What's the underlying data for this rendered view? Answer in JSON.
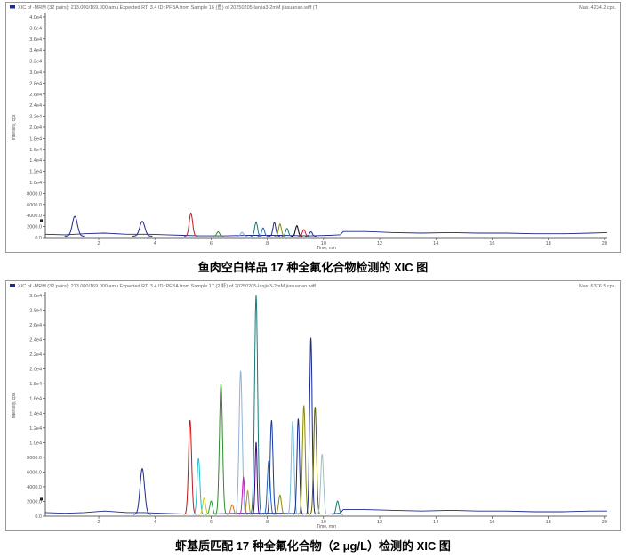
{
  "chart_data": [
    {
      "type": "line",
      "header": "XIC of -MRM (32 pairs): 213.000/169.000 amu Expected RT: 3.4 ID: PFBA from Sample 16 (鱼) of 20250205-lanjia3-2mM jiasuanan.wiff (T",
      "max_label": "Max. 4234.2 cps.",
      "xlabel": "Time, min",
      "ylabel": "Intensity, cps",
      "caption": "鱼肉空白样品 17 种全氟化合物检测的 XIC 图",
      "xlim": [
        0.1,
        20.1
      ],
      "ylim": [
        0,
        40000
      ],
      "x_ticks": [
        2,
        4,
        6,
        8,
        10,
        12,
        14,
        16,
        18,
        20
      ],
      "y_ticks": [
        {
          "v": 0,
          "label": "0.0"
        },
        {
          "v": 2000,
          "label": "2000.0"
        },
        {
          "v": 4000,
          "label": "4000.0"
        },
        {
          "v": 6000,
          "label": "6000.0"
        },
        {
          "v": 8000,
          "label": "8000.0"
        },
        {
          "v": 10000,
          "label": "1.0e4"
        },
        {
          "v": 12000,
          "label": "1.2e4"
        },
        {
          "v": 14000,
          "label": "1.4e4"
        },
        {
          "v": 16000,
          "label": "1.6e4"
        },
        {
          "v": 18000,
          "label": "1.8e4"
        },
        {
          "v": 20000,
          "label": "2.0e4"
        },
        {
          "v": 22000,
          "label": "2.2e4"
        },
        {
          "v": 24000,
          "label": "2.4e4"
        },
        {
          "v": 26000,
          "label": "2.6e4"
        },
        {
          "v": 28000,
          "label": "2.8e4"
        },
        {
          "v": 30000,
          "label": "3.0e4"
        },
        {
          "v": 32000,
          "label": "3.2e4"
        },
        {
          "v": 34000,
          "label": "3.4e4"
        },
        {
          "v": 36000,
          "label": "3.6e4"
        },
        {
          "v": 38000,
          "label": "3.8e4"
        },
        {
          "v": 40000,
          "label": "4.0e4"
        }
      ],
      "baseline": {
        "color": "#1c2a8c",
        "points": [
          [
            0.1,
            600
          ],
          [
            0.8,
            500
          ],
          [
            1.5,
            700
          ],
          [
            2.2,
            800
          ],
          [
            3.0,
            600
          ],
          [
            3.8,
            600
          ],
          [
            4.4,
            500
          ],
          [
            5.0,
            400
          ],
          [
            5.6,
            300
          ],
          [
            6.5,
            300
          ],
          [
            7.3,
            400
          ],
          [
            8.5,
            400
          ],
          [
            9.5,
            300
          ],
          [
            10.2,
            400
          ],
          [
            10.6,
            500
          ],
          [
            10.7,
            1100
          ],
          [
            11.5,
            1100
          ],
          [
            12.5,
            900
          ],
          [
            13.5,
            800
          ],
          [
            14.5,
            900
          ],
          [
            15.5,
            800
          ],
          [
            16.5,
            800
          ],
          [
            17.5,
            700
          ],
          [
            18.5,
            700
          ],
          [
            19.5,
            800
          ],
          [
            20.1,
            900
          ]
        ]
      },
      "peaks": [
        {
          "rt": 1.15,
          "height": 3600,
          "width": 0.09,
          "color": "#1c2a8c"
        },
        {
          "rt": 3.55,
          "height": 2700,
          "width": 0.09,
          "color": "#1c2a8c"
        },
        {
          "rt": 5.28,
          "height": 4200,
          "width": 0.06,
          "color": "#c01818"
        },
        {
          "rt": 6.25,
          "height": 800,
          "width": 0.05,
          "color": "#2e8b2e"
        },
        {
          "rt": 7.1,
          "height": 700,
          "width": 0.05,
          "color": "#7fa7d8"
        },
        {
          "rt": 7.6,
          "height": 2600,
          "width": 0.05,
          "color": "#1a7a7a"
        },
        {
          "rt": 7.85,
          "height": 1500,
          "width": 0.05,
          "color": "#2060c0"
        },
        {
          "rt": 8.25,
          "height": 2500,
          "width": 0.05,
          "color": "#1c2a8c"
        },
        {
          "rt": 8.45,
          "height": 2200,
          "width": 0.05,
          "color": "#8a8a00"
        },
        {
          "rt": 8.7,
          "height": 1400,
          "width": 0.05,
          "color": "#1a7a7a"
        },
        {
          "rt": 9.05,
          "height": 1900,
          "width": 0.05,
          "color": "#000000"
        },
        {
          "rt": 9.3,
          "height": 1200,
          "width": 0.05,
          "color": "#cc2020"
        },
        {
          "rt": 9.55,
          "height": 800,
          "width": 0.05,
          "color": "#1c2a8c"
        }
      ]
    },
    {
      "type": "line",
      "header": "XIC of -MRM (32 pairs): 213.000/169.000 amu Expected RT: 3.4 ID: PFBA from Sample 17 (2 虾) of 20250205-lanjia3-2mM jiasuanan.wiff",
      "max_label": "Max. 6376.5 cps.",
      "xlabel": "Time, min",
      "ylabel": "Intensity, cps",
      "caption": "虾基质匹配 17 种全氟化合物（2 μg/L）检测的 XIC 图",
      "xlim": [
        0.1,
        20.1
      ],
      "ylim": [
        0,
        30000
      ],
      "x_ticks": [
        2,
        4,
        6,
        8,
        10,
        12,
        14,
        16,
        18,
        20
      ],
      "y_ticks": [
        {
          "v": 0,
          "label": "0.0"
        },
        {
          "v": 2000,
          "label": "2000.0"
        },
        {
          "v": 4000,
          "label": "4000.0"
        },
        {
          "v": 6000,
          "label": "6000.0"
        },
        {
          "v": 8000,
          "label": "8000.0"
        },
        {
          "v": 10000,
          "label": "1.0e4"
        },
        {
          "v": 12000,
          "label": "1.2e4"
        },
        {
          "v": 14000,
          "label": "1.4e4"
        },
        {
          "v": 16000,
          "label": "1.6e4"
        },
        {
          "v": 18000,
          "label": "1.8e4"
        },
        {
          "v": 20000,
          "label": "2.0e4"
        },
        {
          "v": 22000,
          "label": "2.2e4"
        },
        {
          "v": 24000,
          "label": "2.4e4"
        },
        {
          "v": 26000,
          "label": "2.6e4"
        },
        {
          "v": 28000,
          "label": "2.8e4"
        },
        {
          "v": 30000,
          "label": "3.0e4"
        }
      ],
      "baseline": {
        "color": "#1c2a8c",
        "points": [
          [
            0.1,
            500
          ],
          [
            0.8,
            400
          ],
          [
            1.5,
            500
          ],
          [
            2.2,
            700
          ],
          [
            3.0,
            500
          ],
          [
            3.6,
            500
          ],
          [
            4.2,
            400
          ],
          [
            5.0,
            300
          ],
          [
            6.0,
            300
          ],
          [
            7.0,
            400
          ],
          [
            8.5,
            400
          ],
          [
            9.5,
            300
          ],
          [
            10.2,
            300
          ],
          [
            10.6,
            400
          ],
          [
            10.7,
            900
          ],
          [
            11.5,
            900
          ],
          [
            12.5,
            800
          ],
          [
            13.5,
            700
          ],
          [
            14.5,
            800
          ],
          [
            15.5,
            700
          ],
          [
            16.5,
            700
          ],
          [
            17.5,
            600
          ],
          [
            18.5,
            600
          ],
          [
            19.5,
            700
          ],
          [
            20.1,
            700
          ]
        ]
      },
      "peaks": [
        {
          "rt": 3.55,
          "height": 6200,
          "width": 0.08,
          "color": "#1c2a8c"
        },
        {
          "rt": 5.25,
          "height": 12800,
          "width": 0.055,
          "color": "#c01818"
        },
        {
          "rt": 5.55,
          "height": 7600,
          "width": 0.05,
          "color": "#20c0d0"
        },
        {
          "rt": 5.75,
          "height": 2200,
          "width": 0.05,
          "color": "#c8c820"
        },
        {
          "rt": 6.0,
          "height": 1800,
          "width": 0.05,
          "color": "#20a040"
        },
        {
          "rt": 6.35,
          "height": 17800,
          "width": 0.055,
          "color": "#2e8b2e"
        },
        {
          "rt": 6.75,
          "height": 1300,
          "width": 0.05,
          "color": "#e07020"
        },
        {
          "rt": 7.05,
          "height": 19500,
          "width": 0.055,
          "color": "#8fb0d8"
        },
        {
          "rt": 7.15,
          "height": 5000,
          "width": 0.04,
          "color": "#c020c0"
        },
        {
          "rt": 7.3,
          "height": 3200,
          "width": 0.04,
          "color": "#a0a020"
        },
        {
          "rt": 7.6,
          "height": 29800,
          "width": 0.055,
          "color": "#1a7a7a"
        },
        {
          "rt": 7.6,
          "height": 9800,
          "width": 0.035,
          "color": "#400080"
        },
        {
          "rt": 8.05,
          "height": 7300,
          "width": 0.05,
          "color": "#2060c0"
        },
        {
          "rt": 8.15,
          "height": 12800,
          "width": 0.05,
          "color": "#1a3aa0"
        },
        {
          "rt": 8.45,
          "height": 2600,
          "width": 0.05,
          "color": "#8a8a00"
        },
        {
          "rt": 8.9,
          "height": 12700,
          "width": 0.05,
          "color": "#70c0e0"
        },
        {
          "rt": 9.1,
          "height": 13000,
          "width": 0.045,
          "color": "#1c2a8c"
        },
        {
          "rt": 9.3,
          "height": 14800,
          "width": 0.05,
          "color": "#8a8a00"
        },
        {
          "rt": 9.55,
          "height": 24000,
          "width": 0.045,
          "color": "#1c2a8c"
        },
        {
          "rt": 9.7,
          "height": 14600,
          "width": 0.05,
          "color": "#606000"
        },
        {
          "rt": 9.95,
          "height": 8200,
          "width": 0.05,
          "color": "#a0c0c0"
        },
        {
          "rt": 10.5,
          "height": 1800,
          "width": 0.05,
          "color": "#1a7a7a"
        }
      ]
    }
  ]
}
